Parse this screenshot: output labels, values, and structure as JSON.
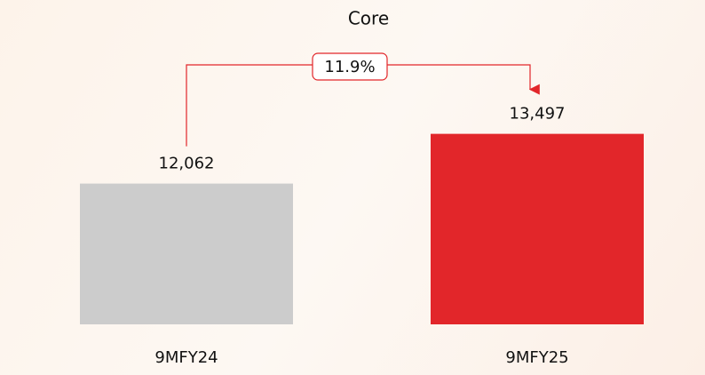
{
  "chart_data": {
    "type": "bar",
    "title": "Core",
    "categories": [
      "9MFY24",
      "9MFY25"
    ],
    "values": [
      12062,
      13497
    ],
    "value_labels": [
      "12,062",
      "13,497"
    ],
    "colors": [
      "#cccccc",
      "#e2262a"
    ],
    "annotation": "11.9%",
    "ylim": [
      8000,
      14000
    ]
  }
}
